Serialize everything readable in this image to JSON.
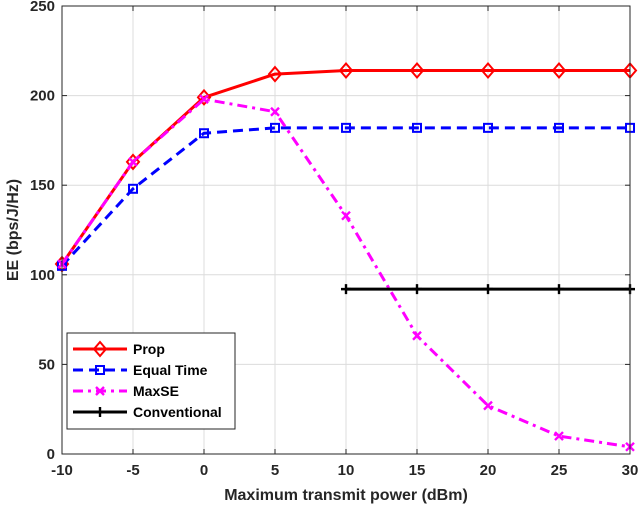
{
  "chart_data": {
    "type": "line",
    "title": "",
    "xlabel": "Maximum transmit power (dBm)",
    "ylabel": "EE (bps/J/Hz)",
    "xlim": [
      -10,
      30
    ],
    "ylim": [
      0,
      250
    ],
    "xticks": [
      -10,
      -5,
      0,
      5,
      10,
      15,
      20,
      25,
      30
    ],
    "yticks": [
      0,
      50,
      100,
      150,
      200,
      250
    ],
    "xtick_labels": [
      "-10",
      "-5",
      "0",
      "5",
      "10",
      "15",
      "20",
      "25",
      "30"
    ],
    "ytick_labels": [
      "0",
      "50",
      "100",
      "150",
      "200",
      "250"
    ],
    "grid": true,
    "legend_position": "bottom-left",
    "series": [
      {
        "name": "Prop",
        "color": "#ff0000",
        "line_style": "solid",
        "marker": "diamond",
        "x": [
          -10,
          -5,
          0,
          5,
          10,
          15,
          20,
          25,
          30
        ],
        "y": [
          106,
          163,
          199,
          212,
          214,
          214,
          214,
          214,
          214
        ]
      },
      {
        "name": "Equal Time",
        "color": "#0000ff",
        "line_style": "dashed",
        "marker": "square",
        "x": [
          -10,
          -5,
          0,
          5,
          10,
          15,
          20,
          25,
          30
        ],
        "y": [
          105,
          148,
          179,
          182,
          182,
          182,
          182,
          182,
          182
        ]
      },
      {
        "name": "MaxSE",
        "color": "#ff00ff",
        "line_style": "dashdot",
        "marker": "x",
        "x": [
          -10,
          -5,
          0,
          5,
          10,
          15,
          20,
          25,
          30
        ],
        "y": [
          106,
          163,
          198,
          191,
          133,
          66,
          27,
          10,
          4
        ]
      },
      {
        "name": "Conventional",
        "color": "#000000",
        "line_style": "solid",
        "marker": "plus",
        "x": [
          10,
          15,
          20,
          25,
          30
        ],
        "y": [
          92,
          92,
          92,
          92,
          92
        ]
      }
    ]
  }
}
